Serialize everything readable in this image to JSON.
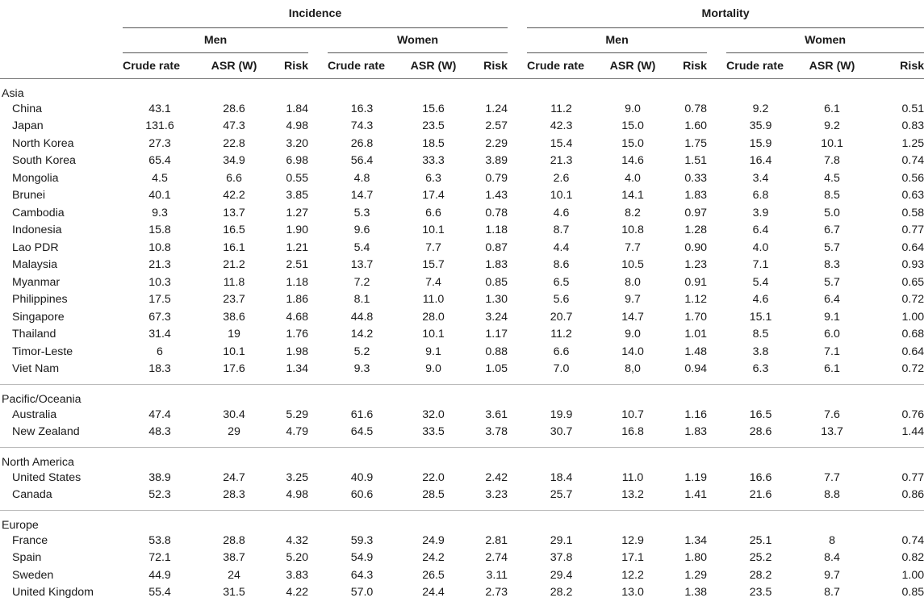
{
  "header": {
    "incidence": "Incidence",
    "mortality": "Mortality",
    "men": "Men",
    "women": "Women",
    "crude_rate": "Crude rate",
    "asr": "ASR (W)",
    "risk": "Risk"
  },
  "groups": [
    {
      "region": "Asia",
      "rows": [
        {
          "country": "China",
          "v": [
            "43.1",
            "28.6",
            "1.84",
            "16.3",
            "15.6",
            "1.24",
            "11.2",
            "9.0",
            "0.78",
            "9.2",
            "6.1",
            "0.51"
          ]
        },
        {
          "country": "Japan",
          "v": [
            "131.6",
            "47.3",
            "4.98",
            "74.3",
            "23.5",
            "2.57",
            "42.3",
            "15.0",
            "1.60",
            "35.9",
            "9.2",
            "0.83"
          ]
        },
        {
          "country": "North Korea",
          "v": [
            "27.3",
            "22.8",
            "3.20",
            "26.8",
            "18.5",
            "2.29",
            "15.4",
            "15.0",
            "1.75",
            "15.9",
            "10.1",
            "1.25"
          ]
        },
        {
          "country": "South Korea",
          "v": [
            "65.4",
            "34.9",
            "6.98",
            "56.4",
            "33.3",
            "3.89",
            "21.3",
            "14.6",
            "1.51",
            "16.4",
            "7.8",
            "0.74"
          ]
        },
        {
          "country": "Mongolia",
          "v": [
            "4.5",
            "6.6",
            "0.55",
            "4.8",
            "6.3",
            "0.79",
            "2.6",
            "4.0",
            "0.33",
            "3.4",
            "4.5",
            "0.56"
          ]
        },
        {
          "country": "Brunei",
          "v": [
            "40.1",
            "42.2",
            "3.85",
            "14.7",
            "17.4",
            "1.43",
            "10.1",
            "14.1",
            "1.83",
            "6.8",
            "8.5",
            "0.63"
          ]
        },
        {
          "country": "Cambodia",
          "v": [
            "9.3",
            "13.7",
            "1.27",
            "5.3",
            "6.6",
            "0.78",
            "4.6",
            "8.2",
            "0.97",
            "3.9",
            "5.0",
            "0.58"
          ]
        },
        {
          "country": "Indonesia",
          "v": [
            "15.8",
            "16.5",
            "1.90",
            "9.6",
            "10.1",
            "1.18",
            "8.7",
            "10.8",
            "1.28",
            "6.4",
            "6.7",
            "0.77"
          ]
        },
        {
          "country": "Lao PDR",
          "v": [
            "10.8",
            "16.1",
            "1.21",
            "5.4",
            "7.7",
            "0.87",
            "4.4",
            "7.7",
            "0.90",
            "4.0",
            "5.7",
            "0.64"
          ]
        },
        {
          "country": "Malaysia",
          "v": [
            "21.3",
            "21.2",
            "2.51",
            "13.7",
            "15.7",
            "1.83",
            "8.6",
            "10.5",
            "1.23",
            "7.1",
            "8.3",
            "0.93"
          ]
        },
        {
          "country": "Myanmar",
          "v": [
            "10.3",
            "11.8",
            "1.18",
            "7.2",
            "7.4",
            "0.85",
            "6.5",
            "8.0",
            "0.91",
            "5.4",
            "5.7",
            "0.65"
          ]
        },
        {
          "country": "Philippines",
          "v": [
            "17.5",
            "23.7",
            "1.86",
            "8.1",
            "11.0",
            "1.30",
            "5.6",
            "9.7",
            "1.12",
            "4.6",
            "6.4",
            "0.72"
          ]
        },
        {
          "country": "Singapore",
          "v": [
            "67.3",
            "38.6",
            "4.68",
            "44.8",
            "28.0",
            "3.24",
            "20.7",
            "14.7",
            "1.70",
            "15.1",
            "9.1",
            "1.00"
          ]
        },
        {
          "country": "Thailand",
          "v": [
            "31.4",
            "19",
            "1.76",
            "14.2",
            "10.1",
            "1.17",
            "11.2",
            "9.0",
            "1.01",
            "8.5",
            "6.0",
            "0.68"
          ]
        },
        {
          "country": "Timor-Leste",
          "v": [
            "6",
            "10.1",
            "1.98",
            "5.2",
            "9.1",
            "0.88",
            "6.6",
            "14.0",
            "1.48",
            "3.8",
            "7.1",
            "0.64"
          ]
        },
        {
          "country": "Viet Nam",
          "v": [
            "18.3",
            "17.6",
            "1.34",
            "9.3",
            "9.0",
            "1.05",
            "7.0",
            "8,0",
            "0.94",
            "6.3",
            "6.1",
            "0.72"
          ]
        }
      ]
    },
    {
      "region": "Pacific/Oceania",
      "rows": [
        {
          "country": "Australia",
          "v": [
            "47.4",
            "30.4",
            "5.29",
            "61.6",
            "32.0",
            "3.61",
            "19.9",
            "10.7",
            "1.16",
            "16.5",
            "7.6",
            "0.76"
          ]
        },
        {
          "country": "New Zealand",
          "v": [
            "48.3",
            "29",
            "4.79",
            "64.5",
            "33.5",
            "3.78",
            "30.7",
            "16.8",
            "1.83",
            "28.6",
            "13.7",
            "1.44"
          ]
        }
      ]
    },
    {
      "region": "North America",
      "rows": [
        {
          "country": "United States",
          "v": [
            "38.9",
            "24.7",
            "3.25",
            "40.9",
            "22.0",
            "2.42",
            "18.4",
            "11.0",
            "1.19",
            "16.6",
            "7.7",
            "0.77"
          ]
        },
        {
          "country": "Canada",
          "v": [
            "52.3",
            "28.3",
            "4.98",
            "60.6",
            "28.5",
            "3.23",
            "25.7",
            "13.2",
            "1.41",
            "21.6",
            "8.8",
            "0.86"
          ]
        }
      ]
    },
    {
      "region": "Europe",
      "rows": [
        {
          "country": "France",
          "v": [
            "53.8",
            "28.8",
            "4.32",
            "59.3",
            "24.9",
            "2.81",
            "29.1",
            "12.9",
            "1.34",
            "25.1",
            "8",
            "0.74"
          ]
        },
        {
          "country": "Spain",
          "v": [
            "72.1",
            "38.7",
            "5.20",
            "54.9",
            "24.2",
            "2.74",
            "37.8",
            "17.1",
            "1.80",
            "25.2",
            "8.4",
            "0.82"
          ]
        },
        {
          "country": "Sweden",
          "v": [
            "44.9",
            "24",
            "3.83",
            "64.3",
            "26.5",
            "3.11",
            "29.4",
            "12.2",
            "1.29",
            "28.2",
            "9.7",
            "1.00"
          ]
        },
        {
          "country": "United Kingdom",
          "v": [
            "55.4",
            "31.5",
            "4.22",
            "57.0",
            "24.4",
            "2.73",
            "28.2",
            "13.0",
            "1.38",
            "23.5",
            "8.7",
            "0.85"
          ]
        }
      ]
    }
  ]
}
